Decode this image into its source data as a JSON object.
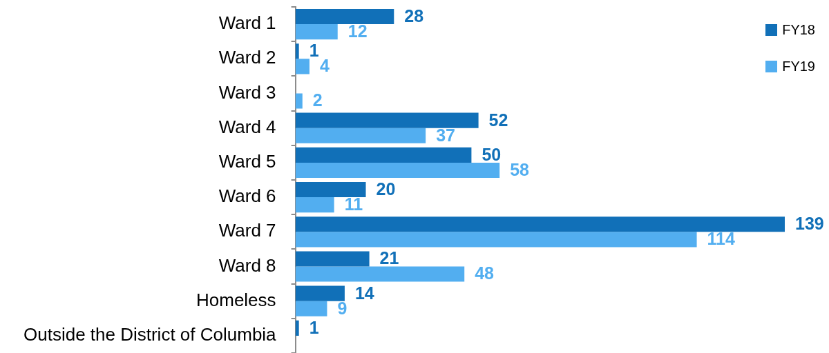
{
  "chart_data": {
    "type": "bar",
    "orientation": "horizontal",
    "categories": [
      "Ward 1",
      "Ward 2",
      "Ward 3",
      "Ward 4",
      "Ward 5",
      "Ward 6",
      "Ward 7",
      "Ward 8",
      "Homeless",
      "Outside the District of Columbia"
    ],
    "series": [
      {
        "name": "FY18",
        "color": "#1170b8",
        "values": [
          28,
          1,
          null,
          52,
          50,
          20,
          139,
          21,
          14,
          1
        ]
      },
      {
        "name": "FY19",
        "color": "#52aef0",
        "values": [
          12,
          4,
          2,
          37,
          58,
          11,
          114,
          48,
          9,
          null
        ]
      }
    ],
    "data_labels": true,
    "legend": "top right",
    "tick_labels": "y"
  }
}
